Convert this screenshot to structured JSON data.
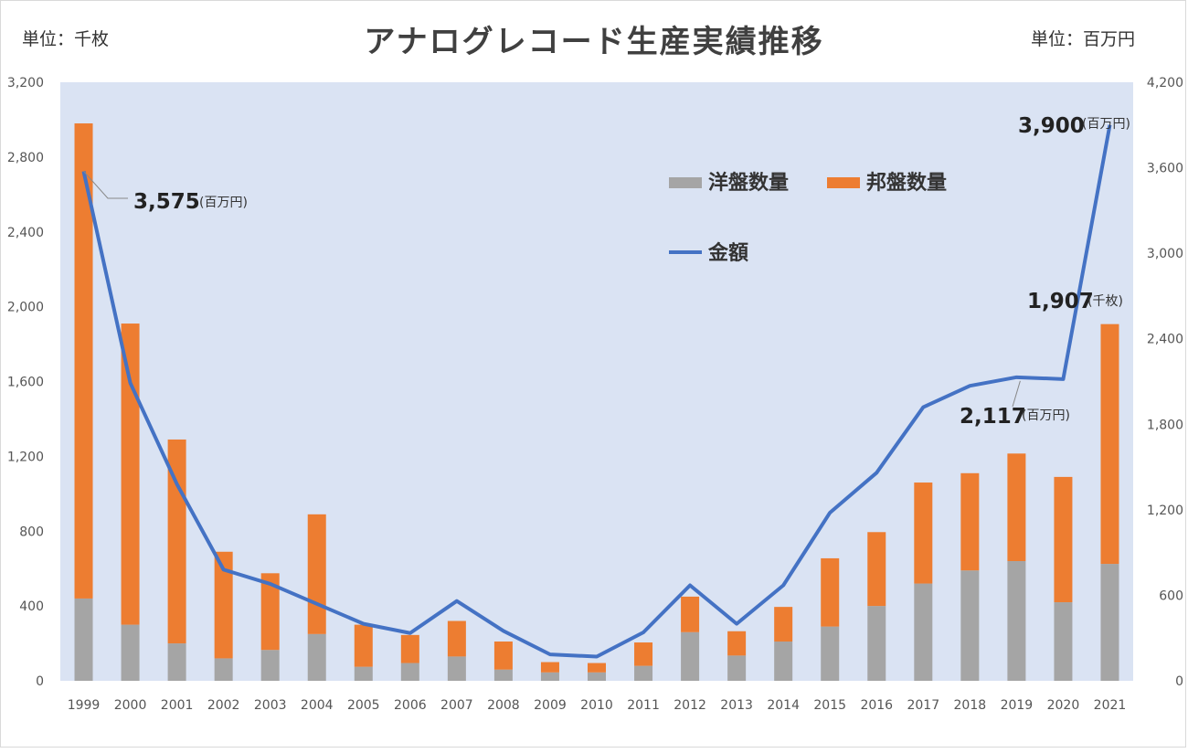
{
  "title": "アナログレコード生産実績推移",
  "unit_left": "単位：千枚",
  "unit_right": "単位：百万円",
  "colors": {
    "plot_bg": "#dae3f3",
    "western": "#a5a5a5",
    "domestic": "#ed7d31",
    "amount": "#4472c4"
  },
  "chart_data": {
    "type": "bar",
    "title": "アナログレコード生産実績推移",
    "categories": [
      "1999",
      "2000",
      "2001",
      "2002",
      "2003",
      "2004",
      "2005",
      "2006",
      "2007",
      "2008",
      "2009",
      "2010",
      "2011",
      "2012",
      "2013",
      "2014",
      "2015",
      "2016",
      "2017",
      "2018",
      "2019",
      "2020",
      "2021"
    ],
    "stacked": true,
    "series": [
      {
        "name": "洋盤数量",
        "axis": "left",
        "type": "bar",
        "values": [
          440,
          300,
          200,
          120,
          165,
          250,
          75,
          95,
          130,
          60,
          45,
          45,
          80,
          260,
          135,
          210,
          290,
          400,
          520,
          590,
          640,
          420,
          625
        ]
      },
      {
        "name": "邦盤数量",
        "axis": "left",
        "type": "bar",
        "values": [
          2540,
          1610,
          1090,
          570,
          410,
          640,
          225,
          150,
          190,
          150,
          55,
          50,
          125,
          190,
          130,
          185,
          365,
          395,
          540,
          520,
          575,
          670,
          1282
        ]
      },
      {
        "name": "金額",
        "axis": "right",
        "type": "line",
        "values": [
          3575,
          2090,
          1380,
          780,
          680,
          540,
          400,
          335,
          560,
          350,
          185,
          170,
          340,
          670,
          400,
          670,
          1180,
          1460,
          1920,
          2070,
          2130,
          2117,
          3900
        ]
      }
    ],
    "ylim_left": [
      0,
      3200
    ],
    "yticks_left": [
      "0",
      "400",
      "800",
      "1,200",
      "1,600",
      "2,000",
      "2,400",
      "2,800",
      "3,200"
    ],
    "ylim_right": [
      0,
      4200
    ],
    "yticks_right": [
      "0",
      "600",
      "1,200",
      "1,800",
      "2,400",
      "3,000",
      "3,600",
      "4,200"
    ],
    "legend": {
      "placement": "top-right"
    },
    "annotations": [
      {
        "value": "3,575",
        "unit": "(百万円)"
      },
      {
        "value": "3,900",
        "unit": "(百万円)"
      },
      {
        "value": "1,907",
        "unit": "(千枚)"
      },
      {
        "value": "2,117",
        "unit": "(百万円)"
      }
    ]
  }
}
